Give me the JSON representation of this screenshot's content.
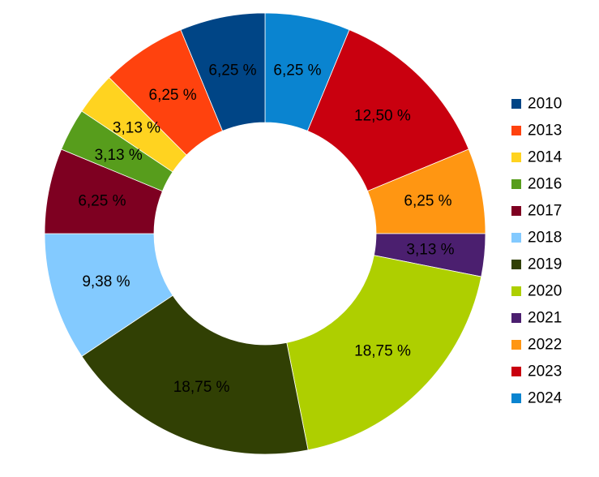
{
  "chart_data": {
    "type": "pie",
    "variant": "donut",
    "start_angle_deg": 0,
    "direction": "clockwise",
    "legend_position": "right",
    "slices": [
      {
        "label": "2024",
        "value": 6.25,
        "display": "6,25 %",
        "color": "#0a84d0"
      },
      {
        "label": "2023",
        "value": 12.5,
        "display": "12,50 %",
        "color": "#c9000f"
      },
      {
        "label": "2022",
        "value": 6.25,
        "display": "6,25 %",
        "color": "#ff9612"
      },
      {
        "label": "2021",
        "value": 3.13,
        "display": "3,13 %",
        "color": "#4b1f6f"
      },
      {
        "label": "2020",
        "value": 18.75,
        "display": "18,75 %",
        "color": "#aecf00"
      },
      {
        "label": "2019",
        "value": 18.75,
        "display": "18,75 %",
        "color": "#314004"
      },
      {
        "label": "2018",
        "value": 9.38,
        "display": "9,38 %",
        "color": "#83caff"
      },
      {
        "label": "2017",
        "value": 6.25,
        "display": "6,25 %",
        "color": "#7e0021"
      },
      {
        "label": "2016",
        "value": 3.13,
        "display": "3,13 %",
        "color": "#579d1c"
      },
      {
        "label": "2014",
        "value": 3.13,
        "display": "3,13 %",
        "color": "#ffd320"
      },
      {
        "label": "2013",
        "value": 6.25,
        "display": "6,25 %",
        "color": "#ff420e"
      },
      {
        "label": "2010",
        "value": 6.25,
        "display": "6,25 %",
        "color": "#004586"
      }
    ],
    "legend": [
      "2010",
      "2013",
      "2014",
      "2016",
      "2017",
      "2018",
      "2019",
      "2020",
      "2021",
      "2022",
      "2023",
      "2024"
    ]
  }
}
